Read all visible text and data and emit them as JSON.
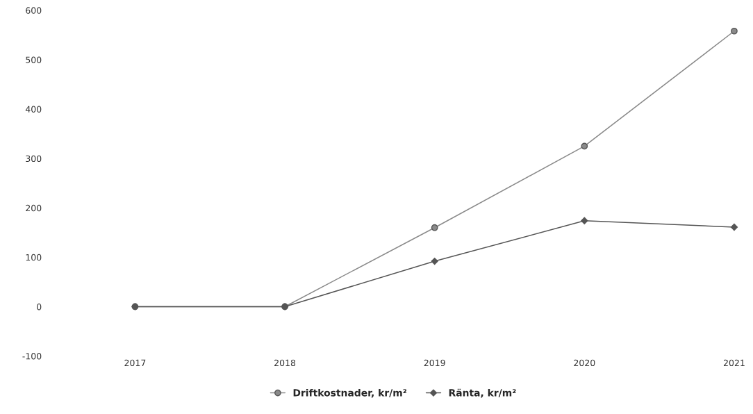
{
  "chart_data": {
    "type": "line",
    "categories": [
      "2017",
      "2018",
      "2019",
      "2020",
      "2021"
    ],
    "series": [
      {
        "name": "Driftkostnader, kr/m²",
        "color": "#8a8a8a",
        "marker": "circle",
        "values": [
          0,
          0,
          160,
          325,
          558
        ]
      },
      {
        "name": "Ränta, kr/m²",
        "color": "#555555",
        "marker": "diamond",
        "values": [
          0,
          0,
          92,
          174,
          161
        ]
      }
    ],
    "ylim": [
      -100,
      600
    ],
    "yticks": [
      -100,
      0,
      100,
      200,
      300,
      400,
      500,
      600
    ],
    "grid": false,
    "legend": "bottom",
    "line_style": "solid"
  }
}
